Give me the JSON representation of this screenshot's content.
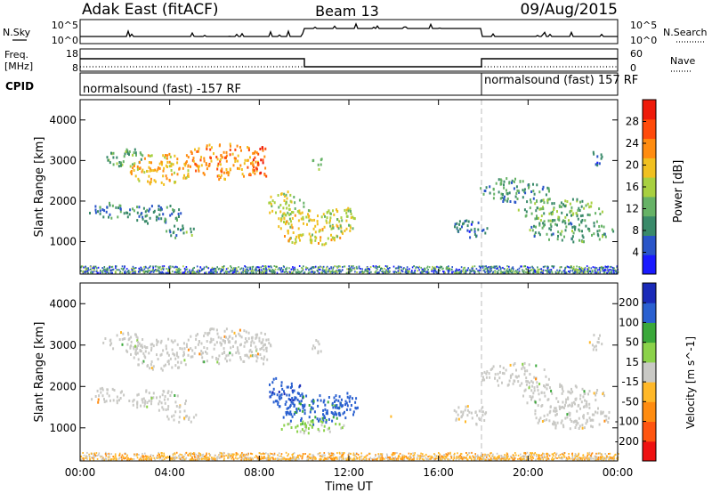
{
  "header": {
    "station": "Adak East (fitACF)",
    "beam": "Beam 13",
    "date": "09/Aug/2015"
  },
  "labels": {
    "nsky": "N.Sky",
    "nsearch": "N.Search",
    "freq": "Freq.",
    "freq_unit": "[MHz]",
    "nave": "Nave",
    "cpid": "CPID",
    "cpid_1": "normalsound (fast) -157 RF",
    "cpid_2": "normalsound (fast) 157 RF",
    "xlabel": "Time UT",
    "noise_ticks_left": [
      "10^5",
      "10^0"
    ],
    "noise_ticks_right": [
      "10^5",
      "10^0"
    ],
    "freq_ticks": [
      "18",
      "8"
    ],
    "nave_ticks": [
      "60",
      "0"
    ]
  },
  "colors": {
    "power": [
      "#1a1aff",
      "#2a55c8",
      "#3a8a6a",
      "#66b266",
      "#a8d040",
      "#f0c020",
      "#ff8c10",
      "#ff4a0a",
      "#ee1a0a"
    ],
    "velocity": [
      "#ee1111",
      "#ff5510",
      "#ff8c10",
      "#ffb828",
      "#c9c9c5",
      "#8bd24a",
      "#3aa83a",
      "#2a60d0",
      "#1a2ab8"
    ]
  },
  "chart_data": [
    {
      "type": "heatmap",
      "name": "power",
      "ylabel": "Slant Range [km]",
      "xlabel": "Time UT",
      "xlim": [
        0,
        24
      ],
      "ylim": [
        200,
        4500
      ],
      "x_ticks": [
        "00:00",
        "04:00",
        "08:00",
        "12:00",
        "16:00",
        "20:00",
        "00:00"
      ],
      "y_ticks": [
        "1000",
        "2000",
        "3000",
        "4000"
      ],
      "colorbar_label": "Power [dB]",
      "colorbar_ticks": [
        "4",
        "8",
        "12",
        "16",
        "20",
        "24",
        "28"
      ],
      "crange": [
        0,
        30
      ],
      "blobs": [
        {
          "t": [
            1.0,
            2.8
          ],
          "r": [
            2850,
            3350
          ],
          "v": 11
        },
        {
          "t": [
            2.2,
            5.0
          ],
          "r": [
            2400,
            3200
          ],
          "v": 19
        },
        {
          "t": [
            4.6,
            8.2
          ],
          "r": [
            2550,
            3450
          ],
          "v": 21
        },
        {
          "t": [
            7.6,
            8.5
          ],
          "r": [
            2550,
            3400
          ],
          "v": 25
        },
        {
          "t": [
            0.3,
            2.0
          ],
          "r": [
            1600,
            2000
          ],
          "v": 8
        },
        {
          "t": [
            2.0,
            4.8
          ],
          "r": [
            1450,
            1950
          ],
          "v": 8
        },
        {
          "t": [
            3.8,
            5.2
          ],
          "r": [
            1100,
            1450
          ],
          "v": 10
        },
        {
          "t": [
            8.3,
            10.0
          ],
          "r": [
            1500,
            2300
          ],
          "v": 16
        },
        {
          "t": [
            8.8,
            11.8
          ],
          "r": [
            900,
            1850
          ],
          "v": 17
        },
        {
          "t": [
            10.8,
            12.4
          ],
          "r": [
            1250,
            1900
          ],
          "v": 15
        },
        {
          "t": [
            10.3,
            10.8
          ],
          "r": [
            2800,
            3150
          ],
          "v": 12
        },
        {
          "t": [
            17.8,
            21.0
          ],
          "r": [
            2000,
            2600
          ],
          "v": 9
        },
        {
          "t": [
            19.5,
            23.4
          ],
          "r": [
            1500,
            2100
          ],
          "v": 12
        },
        {
          "t": [
            20.0,
            23.8
          ],
          "r": [
            1000,
            1600
          ],
          "v": 10
        },
        {
          "t": [
            16.6,
            18.2
          ],
          "r": [
            1100,
            1600
          ],
          "v": 6
        },
        {
          "t": [
            22.7,
            23.3
          ],
          "r": [
            2900,
            3300
          ],
          "v": 7
        }
      ],
      "ground_band": {
        "r": [
          250,
          420
        ],
        "v": 8
      }
    },
    {
      "type": "heatmap",
      "name": "velocity",
      "ylabel": "Slant Range [km]",
      "xlabel": "Time UT",
      "xlim": [
        0,
        24
      ],
      "ylim": [
        200,
        4500
      ],
      "x_ticks": [
        "00:00",
        "04:00",
        "08:00",
        "12:00",
        "16:00",
        "20:00",
        "00:00"
      ],
      "y_ticks": [
        "1000",
        "2000",
        "3000",
        "4000"
      ],
      "colorbar_label": "Velocity [m s^-1]",
      "colorbar_ticks": [
        "200",
        "100",
        "50",
        "15",
        "-15",
        "-50",
        "-100",
        "-200"
      ],
      "crange": [
        -250,
        250
      ],
      "blobs": [
        {
          "t": [
            1.0,
            2.8
          ],
          "r": [
            2850,
            3350
          ],
          "v": 0
        },
        {
          "t": [
            2.2,
            5.0
          ],
          "r": [
            2400,
            3200
          ],
          "v": 0
        },
        {
          "t": [
            4.6,
            8.2
          ],
          "r": [
            2550,
            3450
          ],
          "v": 0
        },
        {
          "t": [
            7.6,
            8.5
          ],
          "r": [
            2550,
            3400
          ],
          "v": 0
        },
        {
          "t": [
            0.3,
            2.0
          ],
          "r": [
            1600,
            2000
          ],
          "v": 0
        },
        {
          "t": [
            2.0,
            4.8
          ],
          "r": [
            1450,
            1950
          ],
          "v": 0
        },
        {
          "t": [
            3.8,
            5.2
          ],
          "r": [
            1100,
            1450
          ],
          "v": 0
        },
        {
          "t": [
            8.3,
            10.0
          ],
          "r": [
            1500,
            2300
          ],
          "v": 180
        },
        {
          "t": [
            8.8,
            11.8
          ],
          "r": [
            1100,
            1850
          ],
          "v": 150
        },
        {
          "t": [
            8.8,
            11.8
          ],
          "r": [
            900,
            1200
          ],
          "v": 40
        },
        {
          "t": [
            10.8,
            12.4
          ],
          "r": [
            1250,
            1900
          ],
          "v": 160
        },
        {
          "t": [
            10.3,
            10.8
          ],
          "r": [
            2800,
            3150
          ],
          "v": 0
        },
        {
          "t": [
            17.8,
            21.0
          ],
          "r": [
            2000,
            2600
          ],
          "v": 0
        },
        {
          "t": [
            19.5,
            23.4
          ],
          "r": [
            1500,
            2100
          ],
          "v": 0
        },
        {
          "t": [
            20.0,
            23.8
          ],
          "r": [
            1000,
            1600
          ],
          "v": 0
        },
        {
          "t": [
            16.6,
            18.2
          ],
          "r": [
            1100,
            1600
          ],
          "v": 0
        },
        {
          "t": [
            22.7,
            23.3
          ],
          "r": [
            2900,
            3300
          ],
          "v": 0
        },
        {
          "t": [
            13.5,
            13.9
          ],
          "r": [
            1280,
            1400
          ],
          "v": -70
        }
      ],
      "ground_band": {
        "r": [
          250,
          420
        ],
        "v": -50
      }
    }
  ]
}
